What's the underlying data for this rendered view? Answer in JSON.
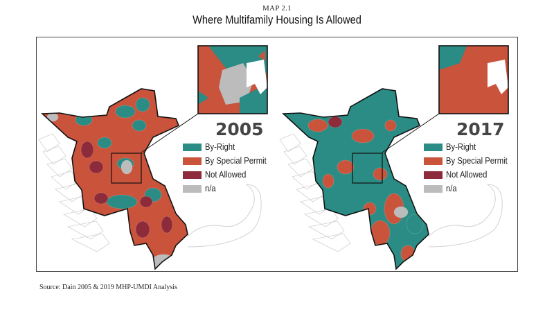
{
  "header": {
    "kicker": "MAP 2.1",
    "title": "Where Multifamily Housing Is Allowed"
  },
  "colors": {
    "by_right": "#2a8c84",
    "by_special_permit": "#c9533b",
    "not_allowed": "#8e2b3b",
    "na": "#bcbcbc",
    "town_lines": "#d2d2d2"
  },
  "maps": [
    {
      "year": "2005",
      "legend": [
        {
          "label": "By-Right",
          "color": "#2a8c84"
        },
        {
          "label": "By Special Permit",
          "color": "#c9533b"
        },
        {
          "label": "Not Allowed",
          "color": "#8e2b3b"
        },
        {
          "label": "n/a",
          "color": "#bcbcbc"
        }
      ]
    },
    {
      "year": "2017",
      "legend": [
        {
          "label": "By-Right",
          "color": "#2a8c84"
        },
        {
          "label": "By Special Permit",
          "color": "#c9533b"
        },
        {
          "label": "Not Allowed",
          "color": "#8e2b3b"
        },
        {
          "label": "n/a",
          "color": "#bcbcbc"
        }
      ]
    }
  ],
  "source": "Source: Dain 2005 & 2019 MHP-UMDI Analysis"
}
